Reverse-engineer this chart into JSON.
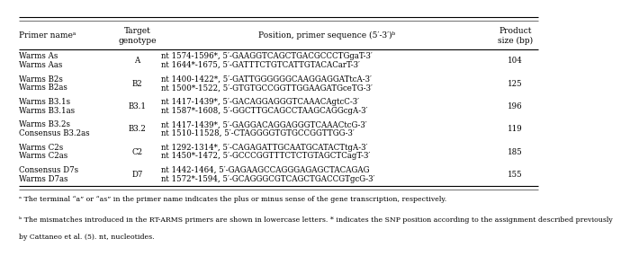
{
  "col_headers": [
    "Primer nameᵃ",
    "Target\ngenotype",
    "Position, primer sequence (5′-3′)ᵇ",
    "Product\nsize (bp)"
  ],
  "rows": [
    {
      "name": [
        "Warms As",
        "Warms Aas"
      ],
      "genotype": "A",
      "sequence": [
        "nt 1574-1596*, 5′-GAAGGTCAGCTGACGCCCTGgaT-3′",
        "nt 1644*-1675, 5′-GATTTCTGTCATTGTACACarT-3′"
      ],
      "size": "104"
    },
    {
      "name": [
        "Warms B2s",
        "Warms B2as"
      ],
      "genotype": "B2",
      "sequence": [
        "nt 1400-1422*, 5′-GATTGGGGGGCAAGGAGGATtcA-3′",
        "nt 1500*-1522, 5′-GTGTGCCGGTTGGAAGATGceTG-3′"
      ],
      "size": "125"
    },
    {
      "name": [
        "Warms B3.1s",
        "Warms B3.1as"
      ],
      "genotype": "B3.1",
      "sequence": [
        "nt 1417-1439*, 5′-GACAGGAGGGTCAAACAgtcC-3′",
        "nt 1587*-1608, 5′-GGCTTGCAGCCTAAGCAGGcgA-3′"
      ],
      "size": "196"
    },
    {
      "name": [
        "Warms B3.2s",
        "Consensus B3.2as"
      ],
      "genotype": "B3.2",
      "sequence": [
        "nt 1417-1439*, 5′-GAGGACAGGAGGGTCAAACtcG-3′",
        "nt 1510-11528, 5′-CTAGGGGTGTGCCGGTTGG-3′"
      ],
      "size": "119"
    },
    {
      "name": [
        "Warms C2s",
        "Warms C2as"
      ],
      "genotype": "C2",
      "sequence": [
        "nt 1292-1314*, 5′-CAGAGATTGCAATGCATACTtgA-3′",
        "nt 1450*-1472, 5′-GCCCGGTTTCTCTGTAGCTCagT-3′"
      ],
      "size": "185"
    },
    {
      "name": [
        "Consensus D7s",
        "Warms D7as"
      ],
      "genotype": "D7",
      "sequence": [
        "nt 1442-1464, 5′-GAGAAGCCAGGGAGAGCTACAGAG",
        "nt 1572*-1594, 5′-GCAGGGCGTCAGCTGACCGTgcG-3′"
      ],
      "size": "155"
    }
  ],
  "footnote_a": "ᵃ The terminal “a” or “as” in the primer name indicates the plus or minus sense of the gene transcription, respectively.",
  "footnote_b": "ᵇ The mismatches introduced in the RT-ARMS primers are shown in lowercase letters. * indicates the SNP position according to the assignment described previously by Cattaneo et al. (5). nt, nucleotides.",
  "bg_color": "#ffffff",
  "line_color": "#000000",
  "text_color": "#000000",
  "font_size": 6.2,
  "header_font_size": 6.5,
  "footnote_font_size": 5.6
}
